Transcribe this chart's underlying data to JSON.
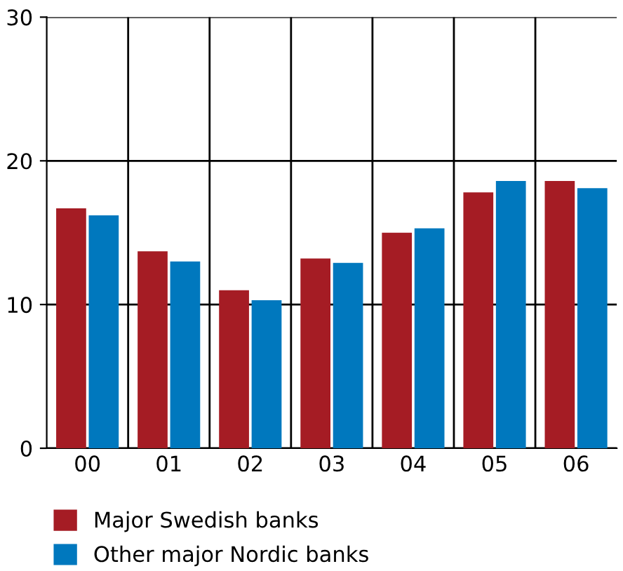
{
  "chart_data": {
    "type": "bar",
    "categories": [
      "00",
      "01",
      "02",
      "03",
      "04",
      "05",
      "06"
    ],
    "series": [
      {
        "name": "Major Swedish banks",
        "color": "#a51c24",
        "values": [
          16.7,
          13.7,
          11.0,
          13.2,
          15.0,
          17.8,
          18.6
        ]
      },
      {
        "name": "Other major Nordic banks",
        "color": "#0078be",
        "values": [
          16.2,
          13.0,
          10.3,
          12.9,
          15.3,
          18.6,
          18.1
        ]
      }
    ],
    "ylim": [
      0,
      30
    ],
    "yticks": [
      0,
      10,
      20,
      30
    ],
    "grid": true,
    "legend": "bottom"
  }
}
